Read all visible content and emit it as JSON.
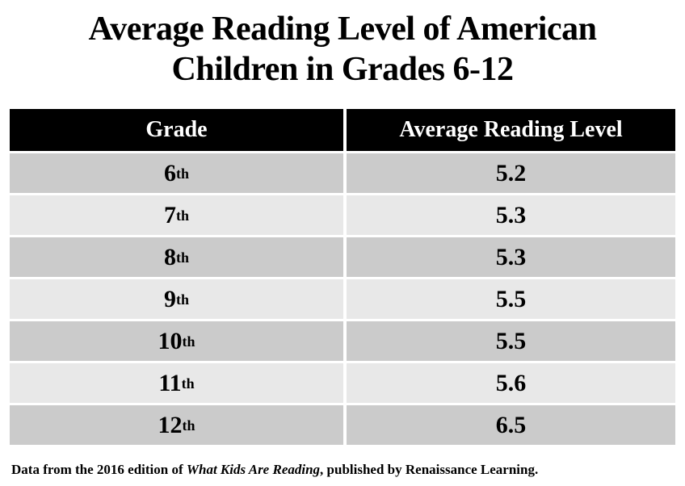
{
  "page": {
    "title_line1": "Average Reading Level of American",
    "title_line2": "Children in Grades 6-12"
  },
  "table": {
    "headers": [
      "Grade",
      "Average Reading Level"
    ],
    "rows": [
      {
        "grade_number": "6",
        "grade_suffix": "th",
        "value": "5.2"
      },
      {
        "grade_number": "7",
        "grade_suffix": "th",
        "value": "5.3"
      },
      {
        "grade_number": "8",
        "grade_suffix": "th",
        "value": "5.3"
      },
      {
        "grade_number": "9",
        "grade_suffix": "th",
        "value": "5.5"
      },
      {
        "grade_number": "10",
        "grade_suffix": "th",
        "value": "5.5"
      },
      {
        "grade_number": "11",
        "grade_suffix": "th",
        "value": "5.6"
      },
      {
        "grade_number": "12",
        "grade_suffix": "th",
        "value": "6.5"
      }
    ]
  },
  "footer": {
    "prefix": "Data from the 2016 edition of ",
    "book_title": "What Kids Are Reading",
    "suffix": ", published by Renaissance Learning."
  },
  "colors": {
    "header_bg": "#000000",
    "header_text": "#ffffff",
    "row_dark": "#cbcbcb",
    "row_light": "#e8e8e8",
    "divider": "#ffffff",
    "text": "#000000"
  },
  "chart_data": {
    "type": "table",
    "title": "Average Reading Level of American Children in Grades 6-12",
    "columns": [
      "Grade",
      "Average Reading Level"
    ],
    "categories": [
      "6th",
      "7th",
      "8th",
      "9th",
      "10th",
      "11th",
      "12th"
    ],
    "values": [
      5.2,
      5.3,
      5.3,
      5.5,
      5.5,
      5.6,
      6.5
    ],
    "source_note": "Data from the 2016 edition of What Kids Are Reading, published by Renaissance Learning."
  }
}
